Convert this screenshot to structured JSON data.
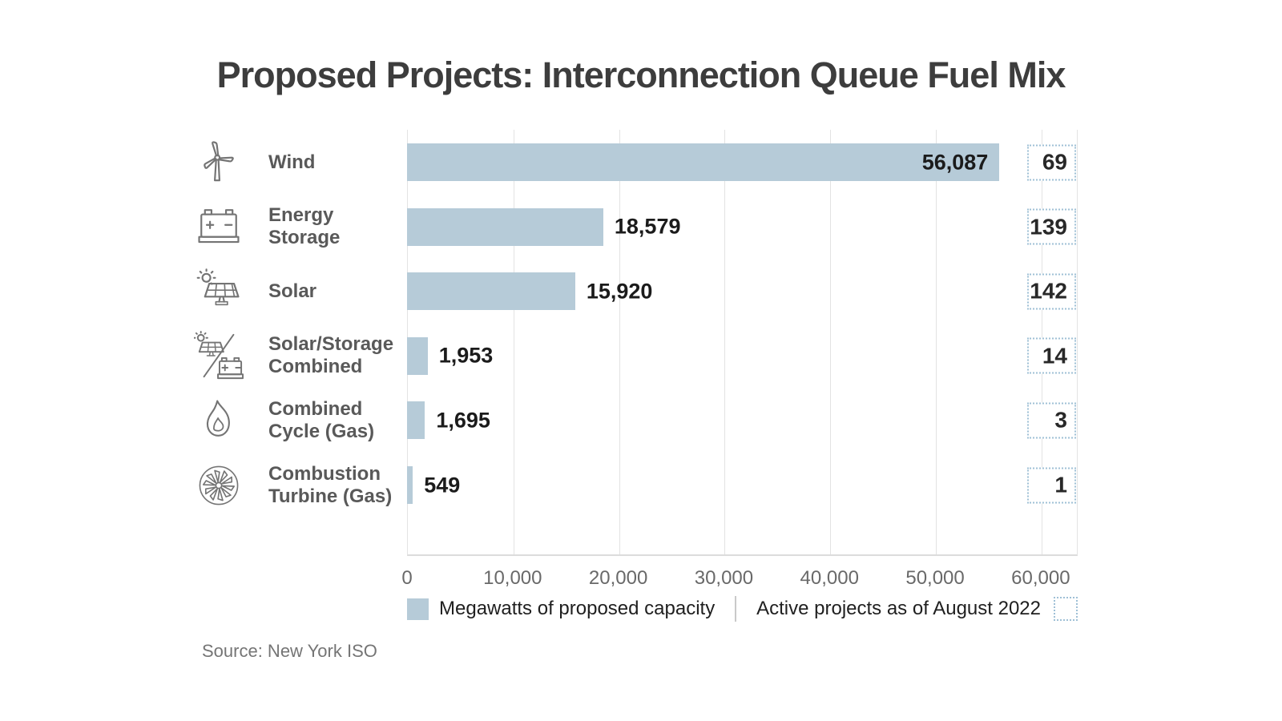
{
  "title": "Proposed Projects: Interconnection Queue Fuel Mix",
  "source": "Source: New York ISO",
  "legend": {
    "capacity_label": "Megawatts of proposed capacity",
    "projects_label": "Active projects as of August 2022"
  },
  "colors": {
    "bar": "#b6cbd8",
    "dotted_border": "#9fc0d6",
    "grid": "#e3e3e3",
    "title_text": "#3d3d3d",
    "category_text": "#595959",
    "value_text": "#1b1b1b",
    "tick_text": "#696969",
    "source_text": "#757575"
  },
  "chart_data": {
    "type": "bar",
    "orientation": "horizontal",
    "title": "Proposed Projects: Interconnection Queue Fuel Mix",
    "xlim": [
      0,
      63500
    ],
    "grid": true,
    "legend_position": "bottom",
    "x_tick_values": [
      0,
      10000,
      20000,
      30000,
      40000,
      50000,
      60000
    ],
    "x_tick_labels": [
      "0",
      "10,000",
      "20,000",
      "30,000",
      "40,000",
      "50,000",
      "60,000"
    ],
    "categories": [
      "Wind",
      "Energy Storage",
      "Solar",
      "Solar/Storage Combined",
      "Combined Cycle (Gas)",
      "Combustion Turbine (Gas)"
    ],
    "series": [
      {
        "name": "Megawatts of proposed capacity",
        "values": [
          56087,
          18579,
          15920,
          1953,
          1695,
          549
        ]
      },
      {
        "name": "Active projects as of August 2022",
        "values": [
          69,
          139,
          142,
          14,
          3,
          1
        ]
      }
    ],
    "icons": [
      "wind-turbine",
      "battery",
      "solar-panel",
      "solar-storage",
      "flame",
      "turbine-fan"
    ],
    "rows": [
      {
        "label_line1": "Wind",
        "label_line2": "",
        "mw": 56087,
        "mw_label": "56,087",
        "projects": "69"
      },
      {
        "label_line1": "Energy",
        "label_line2": "Storage",
        "mw": 18579,
        "mw_label": "18,579",
        "projects": "139"
      },
      {
        "label_line1": "Solar",
        "label_line2": "",
        "mw": 15920,
        "mw_label": "15,920",
        "projects": "142"
      },
      {
        "label_line1": "Solar/Storage",
        "label_line2": "Combined",
        "mw": 1953,
        "mw_label": "1,953",
        "projects": "14"
      },
      {
        "label_line1": "Combined",
        "label_line2": "Cycle (Gas)",
        "mw": 1695,
        "mw_label": "1,695",
        "projects": "3"
      },
      {
        "label_line1": "Combustion",
        "label_line2": "Turbine (Gas)",
        "mw": 549,
        "mw_label": "549",
        "projects": "1"
      }
    ]
  }
}
